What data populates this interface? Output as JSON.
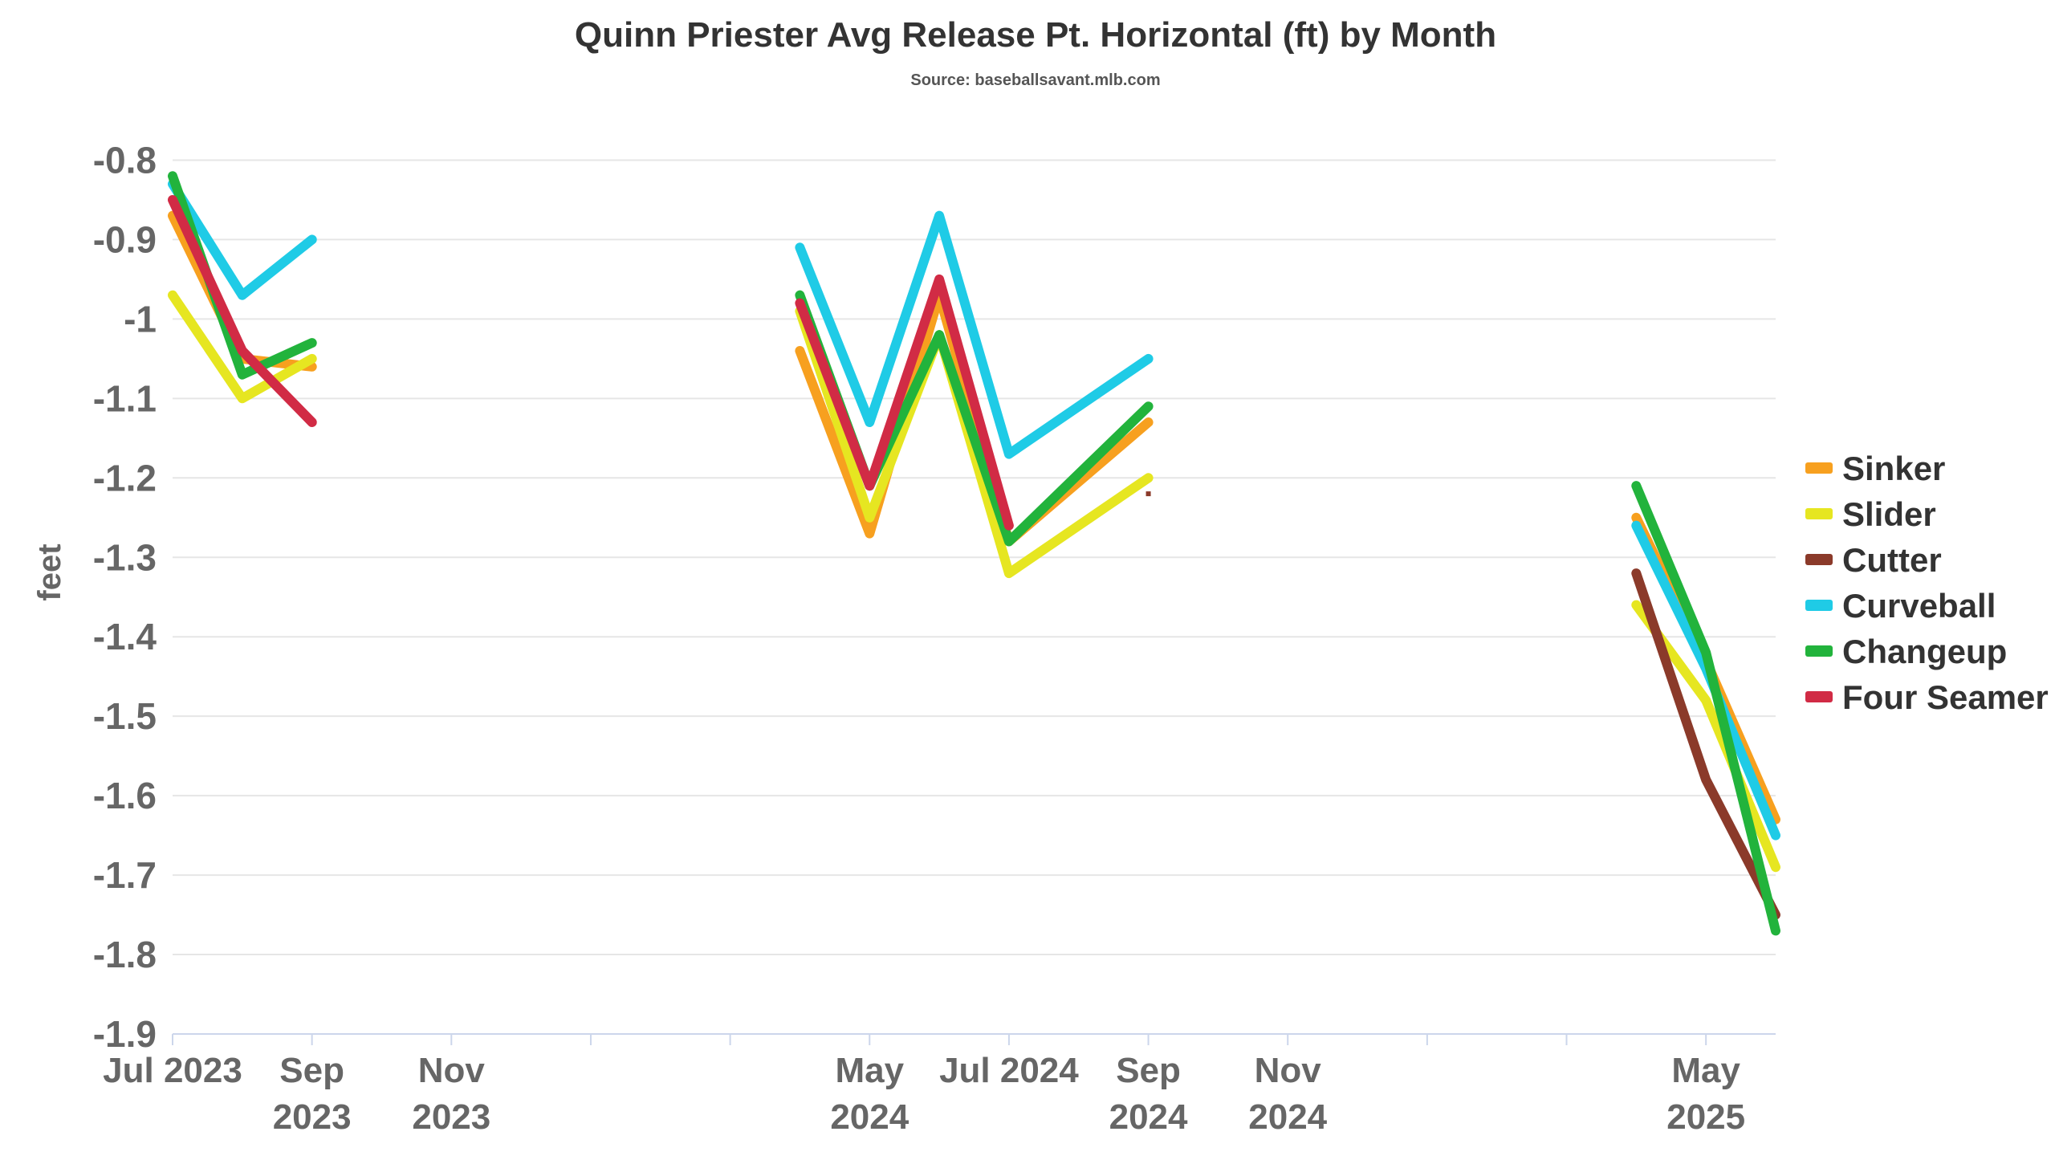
{
  "chart_data": {
    "type": "line",
    "title": "Quinn Priester Avg Release Pt. Horizontal (ft) by Month",
    "subtitle": "Source: baseballsavant.mlb.com",
    "ylabel": "feet",
    "xlabel": "",
    "ylim": [
      -1.9,
      -0.75
    ],
    "yticks": [
      -0.8,
      -0.9,
      -1,
      -1.1,
      -1.2,
      -1.3,
      -1.4,
      -1.5,
      -1.6,
      -1.7,
      -1.8,
      -1.9
    ],
    "xlim": [
      "2023-07",
      "2025-06"
    ],
    "xticks": [
      {
        "x": "2023-07",
        "label": [
          "Jul 2023"
        ]
      },
      {
        "x": "2023-09",
        "label": [
          "Sep",
          "2023"
        ]
      },
      {
        "x": "2023-11",
        "label": [
          "Nov",
          "2023"
        ]
      },
      {
        "x": "2024-01",
        "label": []
      },
      {
        "x": "2024-03",
        "label": []
      },
      {
        "x": "2024-05",
        "label": [
          "May",
          "2024"
        ]
      },
      {
        "x": "2024-07",
        "label": [
          "Jul 2024"
        ]
      },
      {
        "x": "2024-09",
        "label": [
          "Sep",
          "2024"
        ]
      },
      {
        "x": "2024-11",
        "label": [
          "Nov",
          "2024"
        ]
      },
      {
        "x": "2025-01",
        "label": []
      },
      {
        "x": "2025-03",
        "label": []
      },
      {
        "x": "2025-05",
        "label": [
          "May",
          "2025"
        ]
      }
    ],
    "grid": true,
    "legend_position": "right",
    "series": [
      {
        "name": "Sinker",
        "color": "#f7a01f",
        "segments": [
          [
            [
              "2023-07",
              -0.87
            ],
            [
              "2023-08",
              -1.05
            ],
            [
              "2023-09",
              -1.06
            ]
          ],
          [
            [
              "2024-04",
              -1.04
            ],
            [
              "2024-05",
              -1.27
            ],
            [
              "2024-06",
              -0.97
            ],
            [
              "2024-07",
              -1.28
            ],
            [
              "2024-09",
              -1.13
            ]
          ],
          [
            [
              "2025-04",
              -1.25
            ],
            [
              "2025-05",
              -1.43
            ],
            [
              "2025-06",
              -1.63
            ]
          ]
        ]
      },
      {
        "name": "Slider",
        "color": "#e6e621",
        "segments": [
          [
            [
              "2023-07",
              -0.97
            ],
            [
              "2023-08",
              -1.1
            ],
            [
              "2023-09",
              -1.05
            ]
          ],
          [
            [
              "2024-04",
              -0.99
            ],
            [
              "2024-05",
              -1.25
            ],
            [
              "2024-06",
              -1.02
            ],
            [
              "2024-07",
              -1.32
            ],
            [
              "2024-09",
              -1.2
            ]
          ],
          [
            [
              "2025-04",
              -1.36
            ],
            [
              "2025-05",
              -1.48
            ],
            [
              "2025-06",
              -1.69
            ]
          ]
        ]
      },
      {
        "name": "Cutter",
        "color": "#8b3a2a",
        "segments": [
          [
            [
              "2024-09",
              -1.22
            ]
          ],
          [
            [
              "2025-04",
              -1.32
            ],
            [
              "2025-05",
              -1.58
            ],
            [
              "2025-06",
              -1.75
            ]
          ]
        ]
      },
      {
        "name": "Curveball",
        "color": "#1fcbe6",
        "segments": [
          [
            [
              "2023-07",
              -0.83
            ],
            [
              "2023-08",
              -0.97
            ],
            [
              "2023-09",
              -0.9
            ]
          ],
          [
            [
              "2024-04",
              -0.91
            ],
            [
              "2024-05",
              -1.13
            ],
            [
              "2024-06",
              -0.87
            ],
            [
              "2024-07",
              -1.17
            ],
            [
              "2024-09",
              -1.05
            ]
          ],
          [
            [
              "2025-04",
              -1.26
            ],
            [
              "2025-05",
              -1.44
            ],
            [
              "2025-06",
              -1.65
            ]
          ]
        ]
      },
      {
        "name": "Changeup",
        "color": "#22b33c",
        "segments": [
          [
            [
              "2023-07",
              -0.82
            ],
            [
              "2023-08",
              -1.07
            ],
            [
              "2023-09",
              -1.03
            ]
          ],
          [
            [
              "2024-04",
              -0.97
            ],
            [
              "2024-05",
              -1.21
            ],
            [
              "2024-06",
              -1.02
            ],
            [
              "2024-07",
              -1.28
            ],
            [
              "2024-09",
              -1.11
            ]
          ],
          [
            [
              "2025-04",
              -1.21
            ],
            [
              "2025-05",
              -1.42
            ],
            [
              "2025-06",
              -1.77
            ]
          ]
        ]
      },
      {
        "name": "Four Seamer",
        "color": "#d12b45",
        "segments": [
          [
            [
              "2023-07",
              -0.85
            ],
            [
              "2023-08",
              -1.04
            ],
            [
              "2023-09",
              -1.13
            ]
          ],
          [
            [
              "2024-04",
              -0.98
            ],
            [
              "2024-05",
              -1.21
            ],
            [
              "2024-06",
              -0.95
            ],
            [
              "2024-07",
              -1.26
            ]
          ]
        ]
      }
    ]
  }
}
